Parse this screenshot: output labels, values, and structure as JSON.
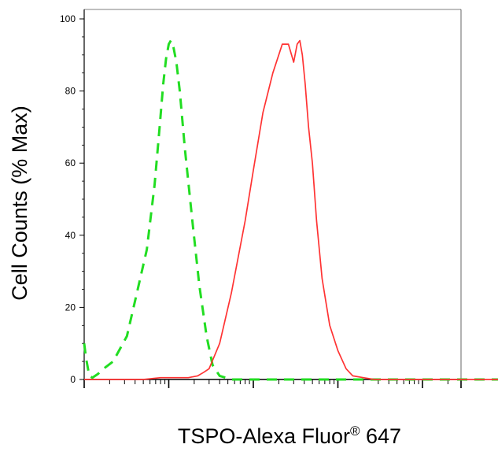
{
  "chart_data": {
    "type": "line",
    "title": "",
    "xlabel": "TSPO-Alexa Fluor",
    "xlabel_superscript": "®",
    "xlabel_suffix": " 647",
    "ylabel": "Cell Counts (% Max)",
    "x_scale": "log",
    "xlim": [
      1,
      100000
    ],
    "ylim": [
      0,
      100
    ],
    "yticks": [
      0,
      20,
      40,
      60,
      80,
      100
    ],
    "ytick_labels": [
      "0",
      "20",
      "40",
      "60",
      "80",
      "100"
    ],
    "xtick_labels": [],
    "grid": false,
    "legend": "none",
    "series": [
      {
        "color": "#22dd22",
        "style": "dashed",
        "x": [
          1,
          1.05,
          1.15,
          1.25,
          1.45,
          1.7,
          2.2,
          3.2,
          4.2,
          5.5,
          6.8,
          7.8,
          8.6,
          9.3,
          10,
          10.6,
          11.4,
          12.3,
          13.5,
          15.5,
          19,
          23,
          28,
          33,
          40,
          55,
          80,
          200,
          1000,
          10000,
          100000
        ],
        "y": [
          10,
          6,
          1,
          0.5,
          1.5,
          3,
          5,
          12,
          24,
          36,
          54,
          70,
          82,
          89,
          93,
          94,
          92,
          88,
          80,
          64,
          44,
          26,
          12,
          4,
          1,
          0,
          0,
          0,
          0,
          0,
          0
        ]
      },
      {
        "color": "#ff3333",
        "style": "solid",
        "x": [
          1,
          5,
          8,
          12,
          17,
          22,
          26,
          30,
          40,
          55,
          80,
          100,
          130,
          170,
          220,
          260,
          300,
          330,
          355,
          380,
          410,
          450,
          500,
          560,
          650,
          800,
          1000,
          1250,
          1500,
          2000,
          2700,
          4000,
          6000,
          10000,
          100000
        ],
        "y": [
          0,
          0,
          0.5,
          0.5,
          0.5,
          1,
          2,
          3,
          10,
          24,
          44,
          58,
          74,
          85,
          93,
          93,
          88,
          93,
          94,
          90,
          82,
          70,
          60,
          44,
          28,
          15,
          8,
          3,
          1,
          0.5,
          0,
          0,
          0,
          0,
          0
        ]
      }
    ]
  }
}
